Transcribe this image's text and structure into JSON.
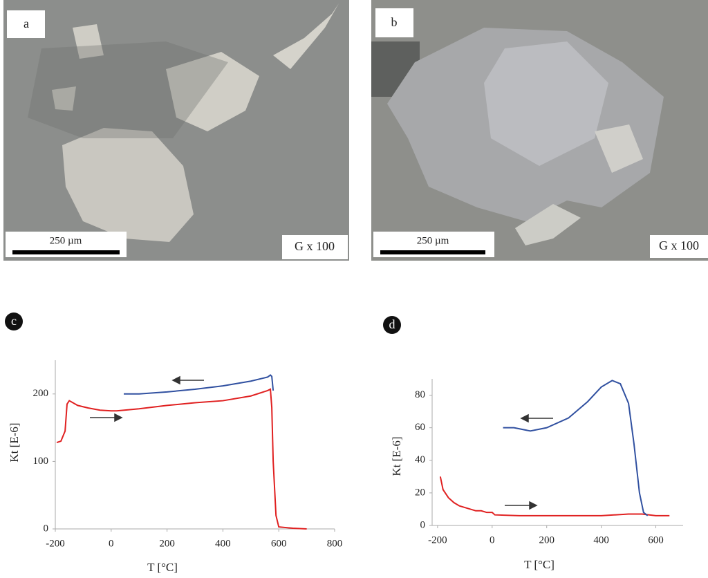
{
  "panels": [
    {
      "label": "a",
      "scale_bar": "250 µm",
      "magnification": "G x 100"
    },
    {
      "label": "b",
      "scale_bar": "250 µm",
      "magnification": "G x 100"
    }
  ],
  "chart_data": [
    {
      "type": "line",
      "label": "c",
      "xlabel": "T [°C]",
      "ylabel": "Kt [E-6]",
      "xlim": [
        -200,
        800
      ],
      "xticks": [
        -200,
        0,
        200,
        400,
        600,
        800
      ],
      "ylim": [
        0,
        250
      ],
      "yticks": [
        0,
        100,
        200
      ],
      "series": [
        {
          "color": "#e02020",
          "x": [
            -195,
            -180,
            -165,
            -158,
            -150,
            -120,
            -80,
            -40,
            0,
            20,
            100,
            200,
            300,
            400,
            500,
            560,
            570,
            575,
            580,
            590,
            600,
            650,
            700
          ],
          "values": [
            128,
            130,
            145,
            185,
            190,
            183,
            179,
            176,
            175,
            175,
            178,
            183,
            187,
            190,
            197,
            205,
            207,
            180,
            100,
            20,
            3,
            1,
            0
          ]
        },
        {
          "color": "#3050a0",
          "x": [
            45,
            100,
            200,
            300,
            400,
            500,
            560,
            570,
            575,
            580
          ],
          "values": [
            200,
            200,
            203,
            207,
            212,
            219,
            225,
            228,
            226,
            205
          ]
        }
      ]
    },
    {
      "type": "line",
      "label": "d",
      "xlabel": "T [°C]",
      "ylabel": "Kt [E-6]",
      "xlim": [
        -220,
        700
      ],
      "xticks": [
        -200,
        0,
        200,
        400,
        600
      ],
      "ylim": [
        0,
        90
      ],
      "yticks": [
        0,
        20,
        40,
        60,
        80
      ],
      "series": [
        {
          "color": "#e02020",
          "x": [
            -190,
            -180,
            -160,
            -140,
            -120,
            -100,
            -80,
            -60,
            -40,
            -20,
            0,
            10,
            100,
            200,
            300,
            400,
            500,
            550,
            600,
            650
          ],
          "values": [
            30,
            22,
            17,
            14,
            12,
            11,
            10,
            9,
            9,
            8,
            8,
            6.5,
            6,
            6,
            6,
            6,
            7,
            7,
            6,
            6
          ]
        },
        {
          "color": "#3050a0",
          "x": [
            40,
            80,
            140,
            200,
            280,
            350,
            400,
            440,
            470,
            500,
            520,
            540,
            555,
            570
          ],
          "values": [
            60,
            60,
            58,
            60,
            66,
            76,
            85,
            89,
            87,
            75,
            50,
            20,
            8,
            6
          ]
        }
      ]
    }
  ]
}
